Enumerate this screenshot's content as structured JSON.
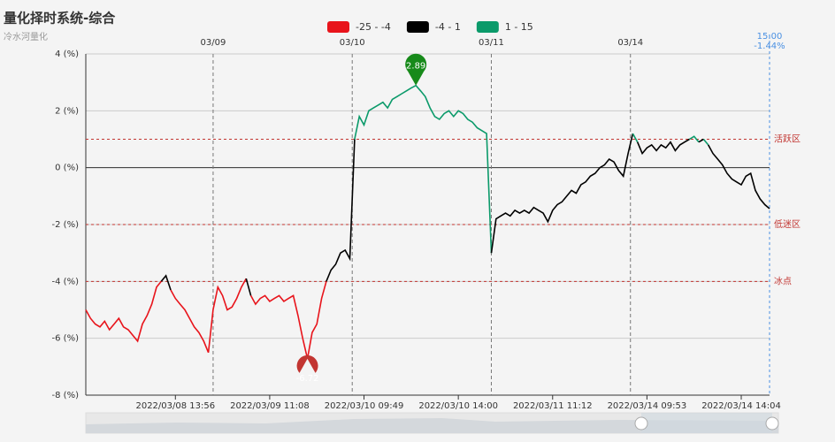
{
  "chart_data": {
    "type": "line",
    "title": "量化择时系统-综合",
    "subtitle": "冷水河量化",
    "categories": [
      null,
      null,
      null,
      null,
      null,
      null,
      null,
      null,
      null,
      null,
      null,
      null,
      null,
      null,
      null,
      null,
      null,
      null,
      null,
      "2022/03/08 13:56",
      null,
      null,
      null,
      null,
      null,
      null,
      null,
      null,
      null,
      null,
      null,
      null,
      null,
      null,
      null,
      null,
      null,
      null,
      null,
      "2022/03/09 11:08",
      null,
      null,
      null,
      null,
      null,
      null,
      null,
      null,
      null,
      null,
      null,
      null,
      null,
      null,
      null,
      null,
      null,
      null,
      null,
      "2022/03/10 09:49",
      null,
      null,
      null,
      null,
      null,
      null,
      null,
      null,
      null,
      null,
      null,
      null,
      null,
      null,
      null,
      null,
      null,
      null,
      null,
      "2022/03/10 14:00",
      null,
      null,
      null,
      null,
      null,
      null,
      null,
      null,
      null,
      null,
      null,
      null,
      null,
      null,
      null,
      null,
      null,
      null,
      null,
      "2022/03/11 11:12",
      null,
      null,
      null,
      null,
      null,
      null,
      null,
      null,
      null,
      null,
      null,
      null,
      null,
      null,
      null,
      null,
      null,
      null,
      null,
      "2022/03/14 09:53",
      null,
      null,
      null,
      null,
      null,
      null,
      null,
      null,
      null,
      null,
      null,
      null,
      null,
      null,
      null,
      null,
      null,
      null,
      null,
      "2022/03/14 14:04",
      null,
      null,
      null,
      null,
      null,
      null
    ],
    "series": [
      {
        "values": [
          -5.0,
          -5.3,
          -5.5,
          -5.6,
          -5.4,
          -5.7,
          -5.5,
          -5.3,
          -5.6,
          -5.7,
          -5.9,
          -6.1,
          -5.5,
          -5.2,
          -4.8,
          -4.2,
          -4.0,
          -3.8,
          -4.3,
          -4.6,
          -4.8,
          -5.0,
          -5.3,
          -5.6,
          -5.8,
          -6.1,
          -6.5,
          -5.0,
          -4.2,
          -4.5,
          -5.0,
          -4.9,
          -4.6,
          -4.2,
          -3.9,
          -4.5,
          -4.8,
          -4.6,
          -4.5,
          -4.7,
          -4.6,
          -4.5,
          -4.7,
          -4.6,
          -4.5,
          -5.2,
          -6.0,
          -6.72,
          -5.8,
          -5.5,
          -4.6,
          -4.0,
          -3.6,
          -3.4,
          -3.0,
          -2.9,
          -3.2,
          1.0,
          1.8,
          1.5,
          2.0,
          2.1,
          2.2,
          2.3,
          2.1,
          2.4,
          2.5,
          2.6,
          2.7,
          2.8,
          2.89,
          2.7,
          2.5,
          2.1,
          1.8,
          1.7,
          1.9,
          2.0,
          1.8,
          2.0,
          1.9,
          1.7,
          1.6,
          1.4,
          1.3,
          1.2,
          -3.0,
          -1.8,
          -1.7,
          -1.6,
          -1.7,
          -1.5,
          -1.6,
          -1.5,
          -1.6,
          -1.4,
          -1.5,
          -1.6,
          -1.9,
          -1.5,
          -1.3,
          -1.2,
          -1.0,
          -0.8,
          -0.9,
          -0.6,
          -0.5,
          -0.3,
          -0.2,
          0.0,
          0.1,
          0.3,
          0.2,
          -0.1,
          -0.3,
          0.5,
          1.2,
          0.9,
          0.5,
          0.7,
          0.8,
          0.6,
          0.8,
          0.7,
          0.9,
          0.6,
          0.8,
          0.9,
          1.0,
          1.1,
          0.9,
          1.0,
          0.8,
          0.5,
          0.3,
          0.1,
          -0.2,
          -0.4,
          -0.5,
          -0.6,
          -0.3,
          -0.2,
          -0.8,
          -1.1,
          -1.3,
          -1.44
        ]
      }
    ],
    "pieces": [
      {
        "min": -25,
        "max": -4,
        "label": "-25 - -4",
        "color": "#e8141b"
      },
      {
        "min": -4,
        "max": 1,
        "label": "-4 - 1",
        "color": "#000000"
      },
      {
        "min": 1,
        "max": 15,
        "label": "1 - 15",
        "color": "#0b9a6a"
      }
    ],
    "ylim": [
      -8,
      4
    ],
    "yticks": [
      {
        "value": -8,
        "label": "-8 (%)"
      },
      {
        "value": -6,
        "label": "-6 (%)"
      },
      {
        "value": -4,
        "label": "-4 (%)"
      },
      {
        "value": -2,
        "label": "-2 (%)"
      },
      {
        "value": 0,
        "label": "0 (%)"
      },
      {
        "value": 2,
        "label": "2 (%)"
      },
      {
        "value": 4,
        "label": "4 (%)"
      }
    ],
    "xticks_top": [
      {
        "value": 27,
        "label": "03/09"
      },
      {
        "value": 56.5,
        "label": "03/10"
      },
      {
        "value": 86,
        "label": "03/11"
      },
      {
        "value": 115.5,
        "label": "03/14"
      }
    ],
    "mark_lines": [
      {
        "value": 1,
        "label": "活跃区"
      },
      {
        "value": -2,
        "label": "低迷区"
      },
      {
        "value": -4,
        "label": "冰点"
      }
    ],
    "mark_line_color": "#c23531",
    "cursor": {
      "x_label": "15:00",
      "value": -1.44,
      "value_label": "-1.44%"
    },
    "grid": true
  }
}
